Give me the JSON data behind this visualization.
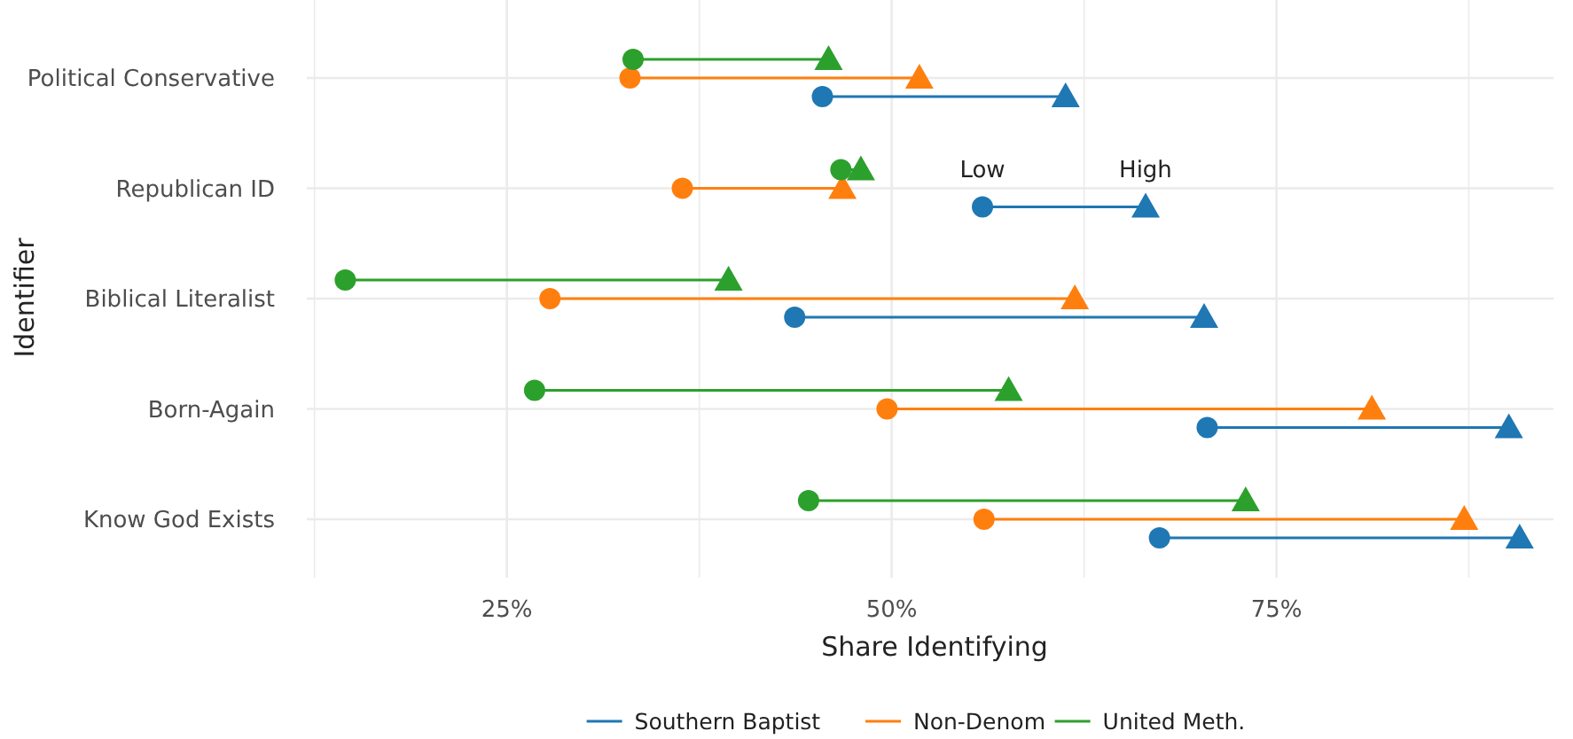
{
  "chart_data": {
    "type": "scatter",
    "orientation": "horizontal",
    "xlabel": "Share Identifying",
    "ylabel": "Identifier",
    "categories": [
      "Political Conservative",
      "Republican ID",
      "Biblical Literalist",
      "Born-Again",
      "Know God Exists"
    ],
    "series": [
      {
        "name": "Southern Baptist",
        "color": "#1f77b4",
        "marker": "triangle",
        "values": [
          61.3,
          66.5,
          70.3,
          90.1,
          90.8
        ]
      },
      {
        "color": "#1f77b4",
        "marker": "circle",
        "values": [
          45.5,
          55.9,
          43.7,
          70.5,
          67.4
        ]
      },
      {
        "name": "Non-Denom",
        "color": "#ff7f0e",
        "marker": "triangle",
        "values": [
          51.8,
          46.8,
          61.9,
          81.2,
          87.2
        ]
      },
      {
        "color": "#ff7f0e",
        "marker": "circle",
        "values": [
          33.0,
          36.4,
          27.8,
          49.7,
          56.0
        ]
      },
      {
        "name": "United Meth.",
        "color": "#2ca02c",
        "marker": "triangle",
        "values": [
          45.9,
          48.0,
          39.4,
          57.6,
          73.0
        ]
      },
      {
        "color": "#2ca02c",
        "marker": "circle",
        "values": [
          33.2,
          46.7,
          14.5,
          26.8,
          44.6
        ]
      }
    ],
    "xlim": [
      12,
      93
    ],
    "xticks": [
      {
        "value": 12.5,
        "label": null
      },
      {
        "value": 25,
        "label": "25%"
      },
      {
        "value": 37.5,
        "label": null
      },
      {
        "value": 50,
        "label": "50%"
      },
      {
        "value": 62.5,
        "label": null
      },
      {
        "value": 75,
        "label": "75%"
      },
      {
        "value": 87.5,
        "label": null
      }
    ],
    "annotations": [
      {
        "text": "Low",
        "x": 55.9,
        "y": "Republican ID"
      },
      {
        "text": "High",
        "x": 66.5,
        "y": "Republican ID"
      }
    ],
    "grid": true,
    "legend": "bottom"
  }
}
